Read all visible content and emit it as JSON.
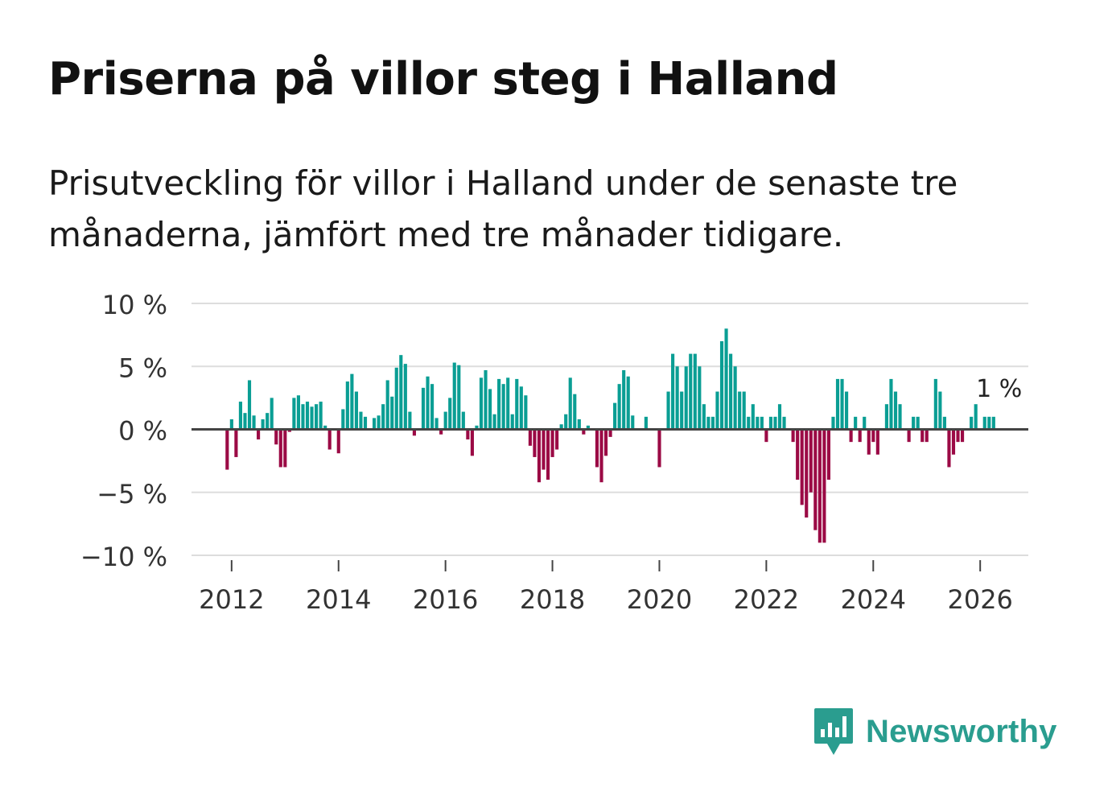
{
  "title": "Priserna på villor steg i Halland",
  "subtitle": "Prisutveckling för villor i Halland under de senaste tre månaderna, jämfört med tre månader tidigare.",
  "logo": {
    "text": "Newsworthy",
    "icon": "newsworthy-bars-icon"
  },
  "colors": {
    "positive": "#0a9e94",
    "negative": "#9b0a45",
    "grid": "#dddddd",
    "zero": "#444444",
    "brand": "#2a9d8f"
  },
  "chart_data": {
    "type": "bar",
    "title": "Priserna på villor steg i Halland",
    "xlabel": "",
    "ylabel": "",
    "ylim": [
      -10,
      10
    ],
    "yticks": [
      {
        "value": 10,
        "label": "10 %"
      },
      {
        "value": 5,
        "label": "5 %"
      },
      {
        "value": 0,
        "label": "0 %"
      },
      {
        "value": -5,
        "label": "−5 %"
      },
      {
        "value": -10,
        "label": "−10 %"
      }
    ],
    "xticks": [
      {
        "value": 2012,
        "label": "2012"
      },
      {
        "value": 2014,
        "label": "2014"
      },
      {
        "value": 2016,
        "label": "2016"
      },
      {
        "value": 2018,
        "label": "2018"
      },
      {
        "value": 2020,
        "label": "2020"
      },
      {
        "value": 2022,
        "label": "2022"
      },
      {
        "value": 2024,
        "label": "2024"
      },
      {
        "value": 2026,
        "label": "2026"
      }
    ],
    "x_start": 2011.917,
    "x_step": 0.0833333,
    "x_range": [
      2011.25,
      2026.9
    ],
    "annotation": {
      "label": "1 %",
      "index": 170
    },
    "values": [
      -3.2,
      0.8,
      -2.2,
      2.2,
      1.3,
      3.9,
      1.1,
      -0.8,
      0.8,
      1.3,
      2.5,
      -1.2,
      -3.0,
      -3.0,
      -0.2,
      2.5,
      2.7,
      2.0,
      2.2,
      1.8,
      2.0,
      2.2,
      0.3,
      -1.6,
      0.0,
      -1.9,
      1.6,
      3.8,
      4.4,
      3.0,
      1.4,
      1.0,
      0.0,
      0.9,
      1.1,
      2.0,
      3.9,
      2.6,
      4.9,
      5.9,
      5.2,
      1.4,
      -0.5,
      0.0,
      3.3,
      4.2,
      3.6,
      0.9,
      -0.4,
      1.4,
      2.5,
      5.3,
      5.1,
      1.4,
      -0.8,
      -2.1,
      0.3,
      4.1,
      4.7,
      3.2,
      1.2,
      4.0,
      3.6,
      4.1,
      1.2,
      4.0,
      3.4,
      2.7,
      -1.3,
      -2.2,
      -4.2,
      -3.2,
      -4.0,
      -2.2,
      -1.6,
      0.4,
      1.2,
      4.1,
      2.8,
      0.8,
      -0.4,
      0.3,
      0.0,
      -3.0,
      -4.2,
      -2.1,
      -0.6,
      2.1,
      3.6,
      4.7,
      4.2,
      1.1,
      0.0,
      0.0,
      1.0,
      0.0,
      0.0,
      -3.0,
      0.0,
      3.0,
      6.0,
      5.0,
      3.0,
      5.0,
      6.0,
      6.0,
      5.0,
      2.0,
      1.0,
      1.0,
      3.0,
      7.0,
      8.0,
      6.0,
      5.0,
      3.0,
      3.0,
      1.0,
      2.0,
      1.0,
      1.0,
      -1.0,
      1.0,
      1.0,
      2.0,
      1.0,
      0.0,
      -1.0,
      -4.0,
      -6.0,
      -7.0,
      -5.0,
      -8.0,
      -9.0,
      -9.0,
      -4.0,
      1.0,
      4.0,
      4.0,
      3.0,
      -1.0,
      1.0,
      -1.0,
      1.0,
      -2.0,
      -1.0,
      -2.0,
      0.0,
      2.0,
      4.0,
      3.0,
      2.0,
      0.0,
      -1.0,
      1.0,
      1.0,
      -1.0,
      -1.0,
      0.0,
      4.0,
      3.0,
      1.0,
      -3.0,
      -2.0,
      -1.0,
      -1.0,
      0.0,
      1.0,
      2.0,
      0.0,
      1.0,
      1.0,
      1.0
    ]
  }
}
